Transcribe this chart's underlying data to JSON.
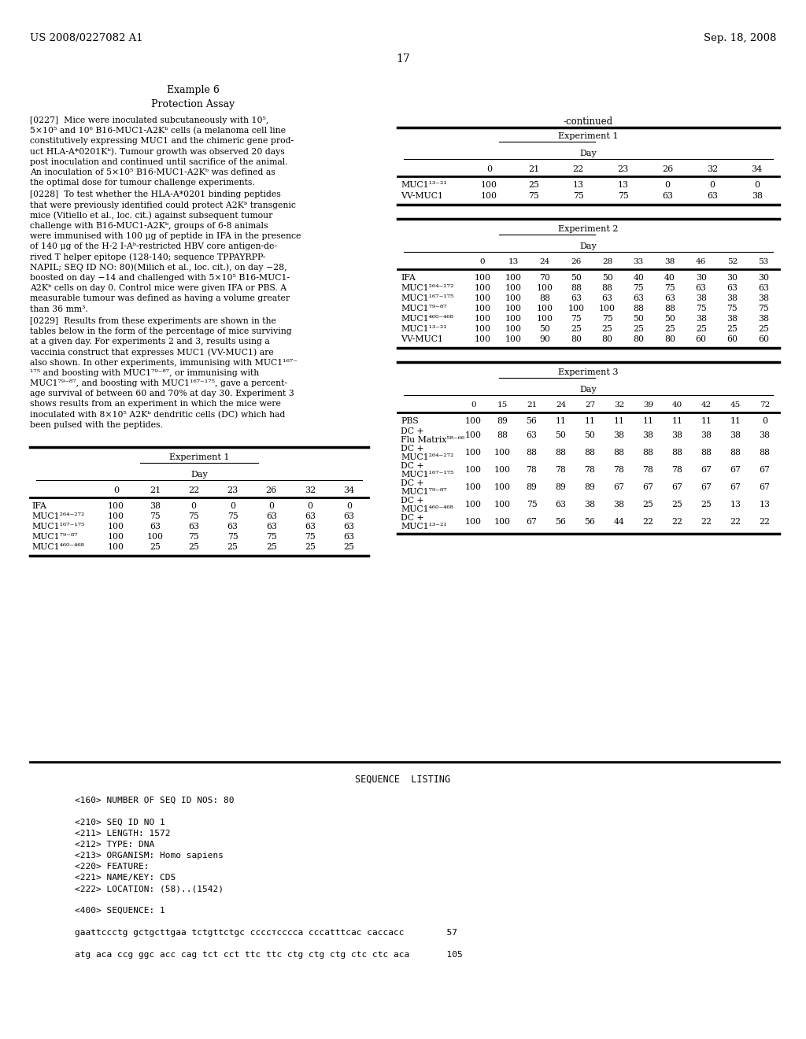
{
  "page_number": "17",
  "header_left": "US 2008/0227082 A1",
  "header_right": "Sep. 18, 2008",
  "section_title": "Example 6",
  "section_subtitle": "Protection Assay",
  "continued_label": "-continued",
  "exp1_top_col_headers": [
    "0",
    "21",
    "22",
    "23",
    "26",
    "32",
    "34"
  ],
  "exp1_top_rows": [
    [
      "MUC1¹³⁻²¹",
      "100",
      "25",
      "13",
      "13",
      "0",
      "0",
      "0"
    ],
    [
      "VV-MUC1",
      "100",
      "75",
      "75",
      "75",
      "63",
      "63",
      "38"
    ]
  ],
  "exp2_col_headers": [
    "0",
    "13",
    "24",
    "26",
    "28",
    "33",
    "38",
    "46",
    "52",
    "53"
  ],
  "exp2_rows": [
    [
      "IFA",
      "100",
      "100",
      "70",
      "50",
      "50",
      "40",
      "40",
      "30",
      "30",
      "30"
    ],
    [
      "MUC1²⁶⁴⁻²⁷²",
      "100",
      "100",
      "100",
      "88",
      "88",
      "75",
      "75",
      "63",
      "63",
      "63"
    ],
    [
      "MUC1¹⁶⁷⁻¹⁷⁵",
      "100",
      "100",
      "88",
      "63",
      "63",
      "63",
      "63",
      "38",
      "38",
      "38"
    ],
    [
      "MUC1⁷⁹⁻⁸⁷",
      "100",
      "100",
      "100",
      "100",
      "100",
      "88",
      "88",
      "75",
      "75",
      "75"
    ],
    [
      "MUC1⁴⁶⁰⁻⁴⁶⁸",
      "100",
      "100",
      "100",
      "75",
      "75",
      "50",
      "50",
      "38",
      "38",
      "38"
    ],
    [
      "MUC1¹³⁻²¹",
      "100",
      "100",
      "50",
      "25",
      "25",
      "25",
      "25",
      "25",
      "25",
      "25"
    ],
    [
      "VV-MUC1",
      "100",
      "100",
      "90",
      "80",
      "80",
      "80",
      "80",
      "60",
      "60",
      "60"
    ]
  ],
  "exp3_col_headers": [
    "0",
    "15",
    "21",
    "24",
    "27",
    "32",
    "39",
    "40",
    "42",
    "45",
    "72"
  ],
  "exp3_rows": [
    [
      "PBS",
      "100",
      "89",
      "56",
      "11",
      "11",
      "11",
      "11",
      "11",
      "11",
      "11",
      "0"
    ],
    [
      "DC +",
      "Flu Matrix⁵⁸⁻⁶⁶",
      "100",
      "88",
      "63",
      "50",
      "50",
      "38",
      "38",
      "38",
      "38",
      "38",
      "38"
    ],
    [
      "DC +",
      "MUC1²⁶⁴⁻²⁷²",
      "100",
      "100",
      "88",
      "88",
      "88",
      "88",
      "88",
      "88",
      "88",
      "88",
      "88"
    ],
    [
      "DC +",
      "MUC1¹⁶⁷⁻¹⁷⁵",
      "100",
      "100",
      "78",
      "78",
      "78",
      "78",
      "78",
      "78",
      "67",
      "67",
      "67"
    ],
    [
      "DC +",
      "MUC1⁷⁹⁻⁸⁷",
      "100",
      "100",
      "89",
      "89",
      "89",
      "67",
      "67",
      "67",
      "67",
      "67",
      "67"
    ],
    [
      "DC +",
      "MUC1⁴⁶⁰⁻⁴⁶⁸",
      "100",
      "100",
      "75",
      "63",
      "38",
      "38",
      "25",
      "25",
      "25",
      "13",
      "13"
    ],
    [
      "DC +",
      "MUC1¹³⁻²¹",
      "100",
      "100",
      "67",
      "56",
      "56",
      "44",
      "22",
      "22",
      "22",
      "22",
      "22"
    ]
  ],
  "exp1_bottom_col_headers": [
    "0",
    "21",
    "22",
    "23",
    "26",
    "32",
    "34"
  ],
  "exp1_bottom_rows": [
    [
      "IFA",
      "100",
      "38",
      "0",
      "0",
      "0",
      "0",
      "0"
    ],
    [
      "MUC1²⁶⁴⁻²⁷²",
      "100",
      "75",
      "75",
      "75",
      "63",
      "63",
      "63"
    ],
    [
      "MUC1¹⁶⁷⁻¹⁷⁵",
      "100",
      "63",
      "63",
      "63",
      "63",
      "63",
      "63"
    ],
    [
      "MUC1⁷⁹⁻⁸⁷",
      "100",
      "100",
      "75",
      "75",
      "75",
      "75",
      "63"
    ],
    [
      "MUC1⁴⁶⁰⁻⁴⁶⁸",
      "100",
      "25",
      "25",
      "25",
      "25",
      "25",
      "25"
    ]
  ],
  "p227_lines": [
    "[0227]  Mice were inoculated subcutaneously with 10⁵,",
    "5×10⁵ and 10⁶ B16-MUC1-A2Kᵇ cells (a melanoma cell line",
    "constitutively expressing MUC1 and the chimeric gene prod-",
    "uct HLA-A*0201Kᵇ). Tumour growth was observed 20 days",
    "post inoculation and continued until sacrifice of the animal.",
    "An inoculation of 5×10⁵ B16-MUC1-A2Kᵇ was defined as",
    "the optimal dose for tumour challenge experiments."
  ],
  "p228_lines": [
    "[0228]  To test whether the HLA-A*0201 binding peptides",
    "that were previously identified could protect A2Kᵇ transgenic",
    "mice (Vitiello et al., loc. cit.) against subsequent tumour",
    "challenge with B16-MUC1-A2Kᵇ, groups of 6-8 animals",
    "were immunised with 100 μg of peptide in IFA in the presence",
    "of 140 μg of the H-2 I-Aᵇ-restricted HBV core antigen-de-",
    "rived T helper epitope (128-140; sequence TPPAYRPP-",
    "NAPIL; SEQ ID NO: 80)(Milich et al., loc. cit.), on day −28,",
    "boosted on day −14 and challenged with 5×10⁵ B16-MUC1-",
    "A2Kᵇ cells on day 0. Control mice were given IFA or PBS. A",
    "measurable tumour was defined as having a volume greater",
    "than 36 mm³."
  ],
  "p229_lines": [
    "[0229]  Results from these experiments are shown in the",
    "tables below in the form of the percentage of mice surviving",
    "at a given day. For experiments 2 and 3, results using a",
    "vaccinia construct that expresses MUC1 (VV-MUC1) are",
    "also shown. In other experiments, immunising with MUC1¹⁶⁷⁻",
    "¹⁷⁵ and boosting with MUC1⁷⁹⁻⁸⁷, or immunising with",
    "MUC1⁷⁹⁻⁸⁷, and boosting with MUC1¹⁶⁷⁻¹⁷⁵, gave a percent-",
    "age survival of between 60 and 70% at day 30. Experiment 3",
    "shows results from an experiment in which the mice were",
    "inoculated with 8×10⁵ A2Kᵇ dendritic cells (DC) which had",
    "been pulsed with the peptides."
  ],
  "seq_listing_lines": [
    "<160> NUMBER OF SEQ ID NOS: 80",
    "",
    "<210> SEQ ID NO 1",
    "<211> LENGTH: 1572",
    "<212> TYPE: DNA",
    "<213> ORGANISM: Homo sapiens",
    "<220> FEATURE:",
    "<221> NAME/KEY: CDS",
    "<222> LOCATION: (58)..(1542)",
    "",
    "<400> SEQUENCE: 1",
    "",
    "gaattccctg gctgcttgaa tctgttctgc ccccтcccca cccatttcac caccacc        57",
    "",
    "atg aca ccg ggc acc cag tct cct ttc ttc ctg ctg ctg ctc ctc aca       105"
  ]
}
